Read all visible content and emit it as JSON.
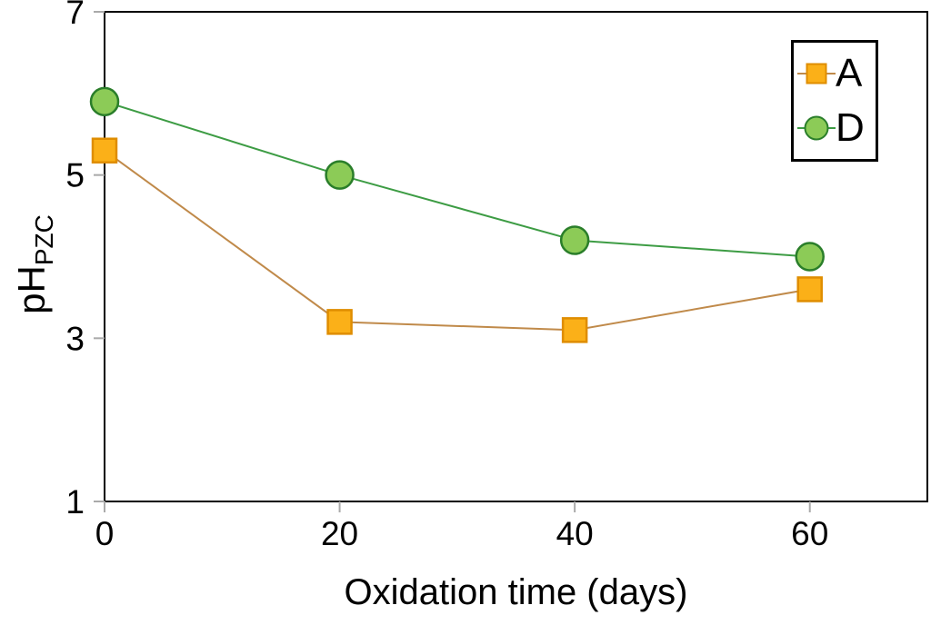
{
  "figure": {
    "background": "#ffffff",
    "axis_color": "#000000",
    "tick_color": "#aaaaaa",
    "text_color": "#000000"
  },
  "chart_data": {
    "type": "line",
    "title": "",
    "xlabel": "Oxidation time (days)",
    "ylabel": "pH_PZC",
    "ylabel_main": "pH",
    "ylabel_sub": "PZC",
    "x": [
      0,
      20,
      40,
      60
    ],
    "xticks": [
      "0",
      "20",
      "40",
      "60"
    ],
    "yticks": [
      "1",
      "3",
      "5",
      "7"
    ],
    "xlim": [
      0,
      70
    ],
    "ylim": [
      1,
      7
    ],
    "grid": false,
    "legend_position": "top-right",
    "series": [
      {
        "name": "A",
        "marker": "square",
        "values": [
          5.3,
          3.2,
          3.1,
          3.6
        ],
        "line_color": "#c08a4a",
        "marker_fill": "#fbb018",
        "marker_stroke": "#df8d00"
      },
      {
        "name": "D",
        "marker": "circle",
        "values": [
          5.9,
          5.0,
          4.2,
          4.0
        ],
        "line_color": "#3d9c44",
        "marker_fill": "#8ccb57",
        "marker_stroke": "#2a7e2a"
      }
    ]
  }
}
